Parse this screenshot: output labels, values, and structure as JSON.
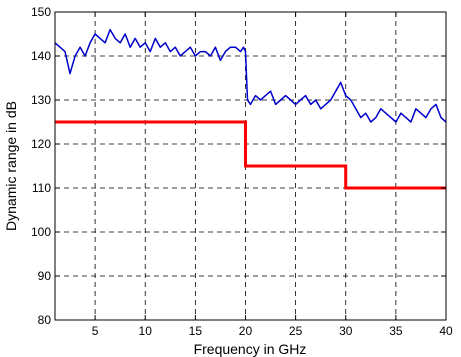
{
  "chart_data": {
    "type": "line",
    "title": "",
    "xlabel": "Frequency in GHz",
    "ylabel": "Dynamic range in dB",
    "xlim": [
      1,
      40
    ],
    "ylim": [
      80,
      150
    ],
    "xticks": [
      5,
      10,
      15,
      20,
      25,
      30,
      35,
      40
    ],
    "yticks": [
      80,
      90,
      100,
      110,
      120,
      130,
      140,
      150
    ],
    "grid": true,
    "series": [
      {
        "color": "#0000cc",
        "style": "noisy-line",
        "x": [
          1,
          1.5,
          2,
          2.5,
          3,
          3.5,
          4,
          4.5,
          5,
          5.5,
          6,
          6.5,
          7,
          7.5,
          8,
          8.5,
          9,
          9.5,
          10,
          10.5,
          11,
          11.5,
          12,
          12.5,
          13,
          13.5,
          14,
          14.5,
          15,
          15.5,
          16,
          16.5,
          17,
          17.5,
          18,
          18.5,
          19,
          19.5,
          19.8,
          20,
          20.2,
          20.5,
          21,
          21.5,
          22,
          22.5,
          23,
          23.5,
          24,
          24.5,
          25,
          25.5,
          26,
          26.5,
          27,
          27.5,
          28,
          28.5,
          29,
          29.5,
          30,
          30.5,
          31,
          31.5,
          32,
          32.5,
          33,
          33.5,
          34,
          34.5,
          35,
          35.5,
          36,
          36.5,
          37,
          37.5,
          38,
          38.5,
          39,
          39.5,
          40
        ],
        "y": [
          143,
          142,
          141,
          136,
          140,
          142,
          140,
          143,
          145,
          144,
          143,
          146,
          144,
          143,
          145,
          142,
          144,
          142,
          143,
          141,
          144,
          142,
          143,
          141,
          142,
          140,
          141,
          142,
          140,
          141,
          141,
          140,
          142,
          139,
          141,
          142,
          142,
          141,
          142,
          141,
          130,
          129,
          131,
          130,
          131,
          132,
          129,
          130,
          131,
          130,
          129,
          130,
          131,
          129,
          130,
          128,
          129,
          130,
          132,
          134,
          131,
          130,
          128,
          126,
          127,
          125,
          126,
          128,
          127,
          126,
          125,
          127,
          126,
          125,
          128,
          127,
          126,
          128,
          129,
          126,
          125
        ]
      },
      {
        "color": "#ff0000",
        "style": "step",
        "x": [
          1,
          20,
          20,
          30,
          30,
          40
        ],
        "y": [
          125,
          125,
          115,
          115,
          110,
          110
        ]
      }
    ]
  }
}
